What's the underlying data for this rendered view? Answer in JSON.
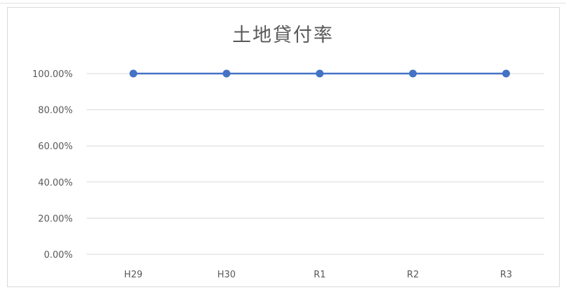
{
  "chart_data": {
    "type": "line",
    "title": "土地貸付率",
    "categories": [
      "H29",
      "H30",
      "R1",
      "R2",
      "R3"
    ],
    "series": [
      {
        "values": [
          100,
          100,
          100,
          100,
          100
        ]
      }
    ],
    "ylim": [
      0,
      100
    ],
    "yticks": [
      "0.00%",
      "20.00%",
      "40.00%",
      "60.00%",
      "80.00%",
      "100.00%"
    ],
    "grid": true,
    "legend": "none",
    "colors": {
      "line": "#4472c4",
      "grid": "#d9d9d9",
      "text": "#595959"
    }
  }
}
